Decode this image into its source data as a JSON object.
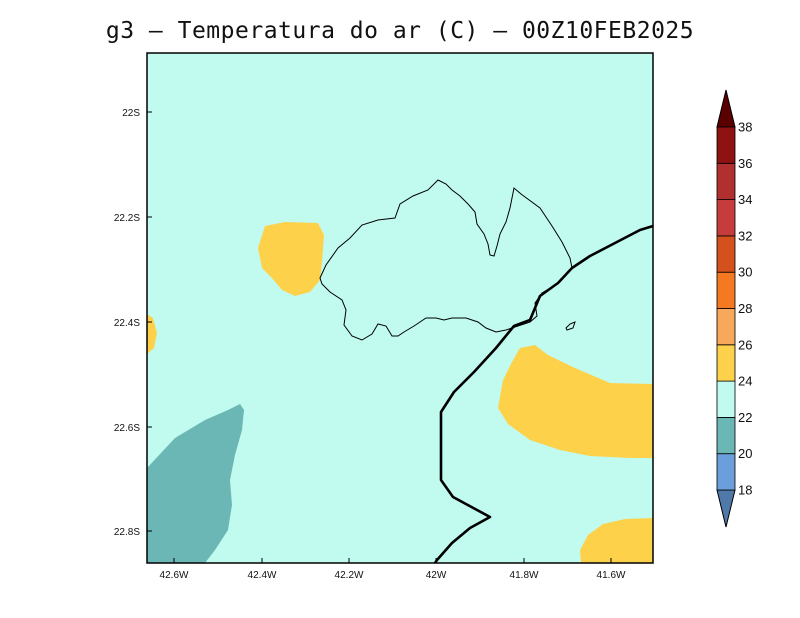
{
  "title": "g3 – Temperatura do ar (C) – 00Z10FEB2025",
  "map": {
    "lon_ticks": [
      "42.6W",
      "42.4W",
      "42.2W",
      "42W",
      "41.8W",
      "41.6W"
    ],
    "lat_ticks": [
      "22S",
      "22.2S",
      "22.4S",
      "22.6S",
      "22.8S"
    ],
    "background_level": "22-24"
  },
  "colorbar": {
    "labels": [
      "18",
      "20",
      "22",
      "24",
      "26",
      "28",
      "30",
      "32",
      "34",
      "36",
      "38"
    ],
    "colors": [
      "#6a9fdc",
      "#6bb7b5",
      "#c1fbef",
      "#fed14a",
      "#f8a85a",
      "#f57920",
      "#d4501c",
      "#c63b3b",
      "#b02f2f",
      "#8e1212"
    ],
    "under_color": "#4f79a8",
    "over_color": "#5a0000"
  },
  "regions_colors": {
    "base": "#c1fbef",
    "warm": "#fed14a",
    "cool": "#6bb7b5"
  }
}
